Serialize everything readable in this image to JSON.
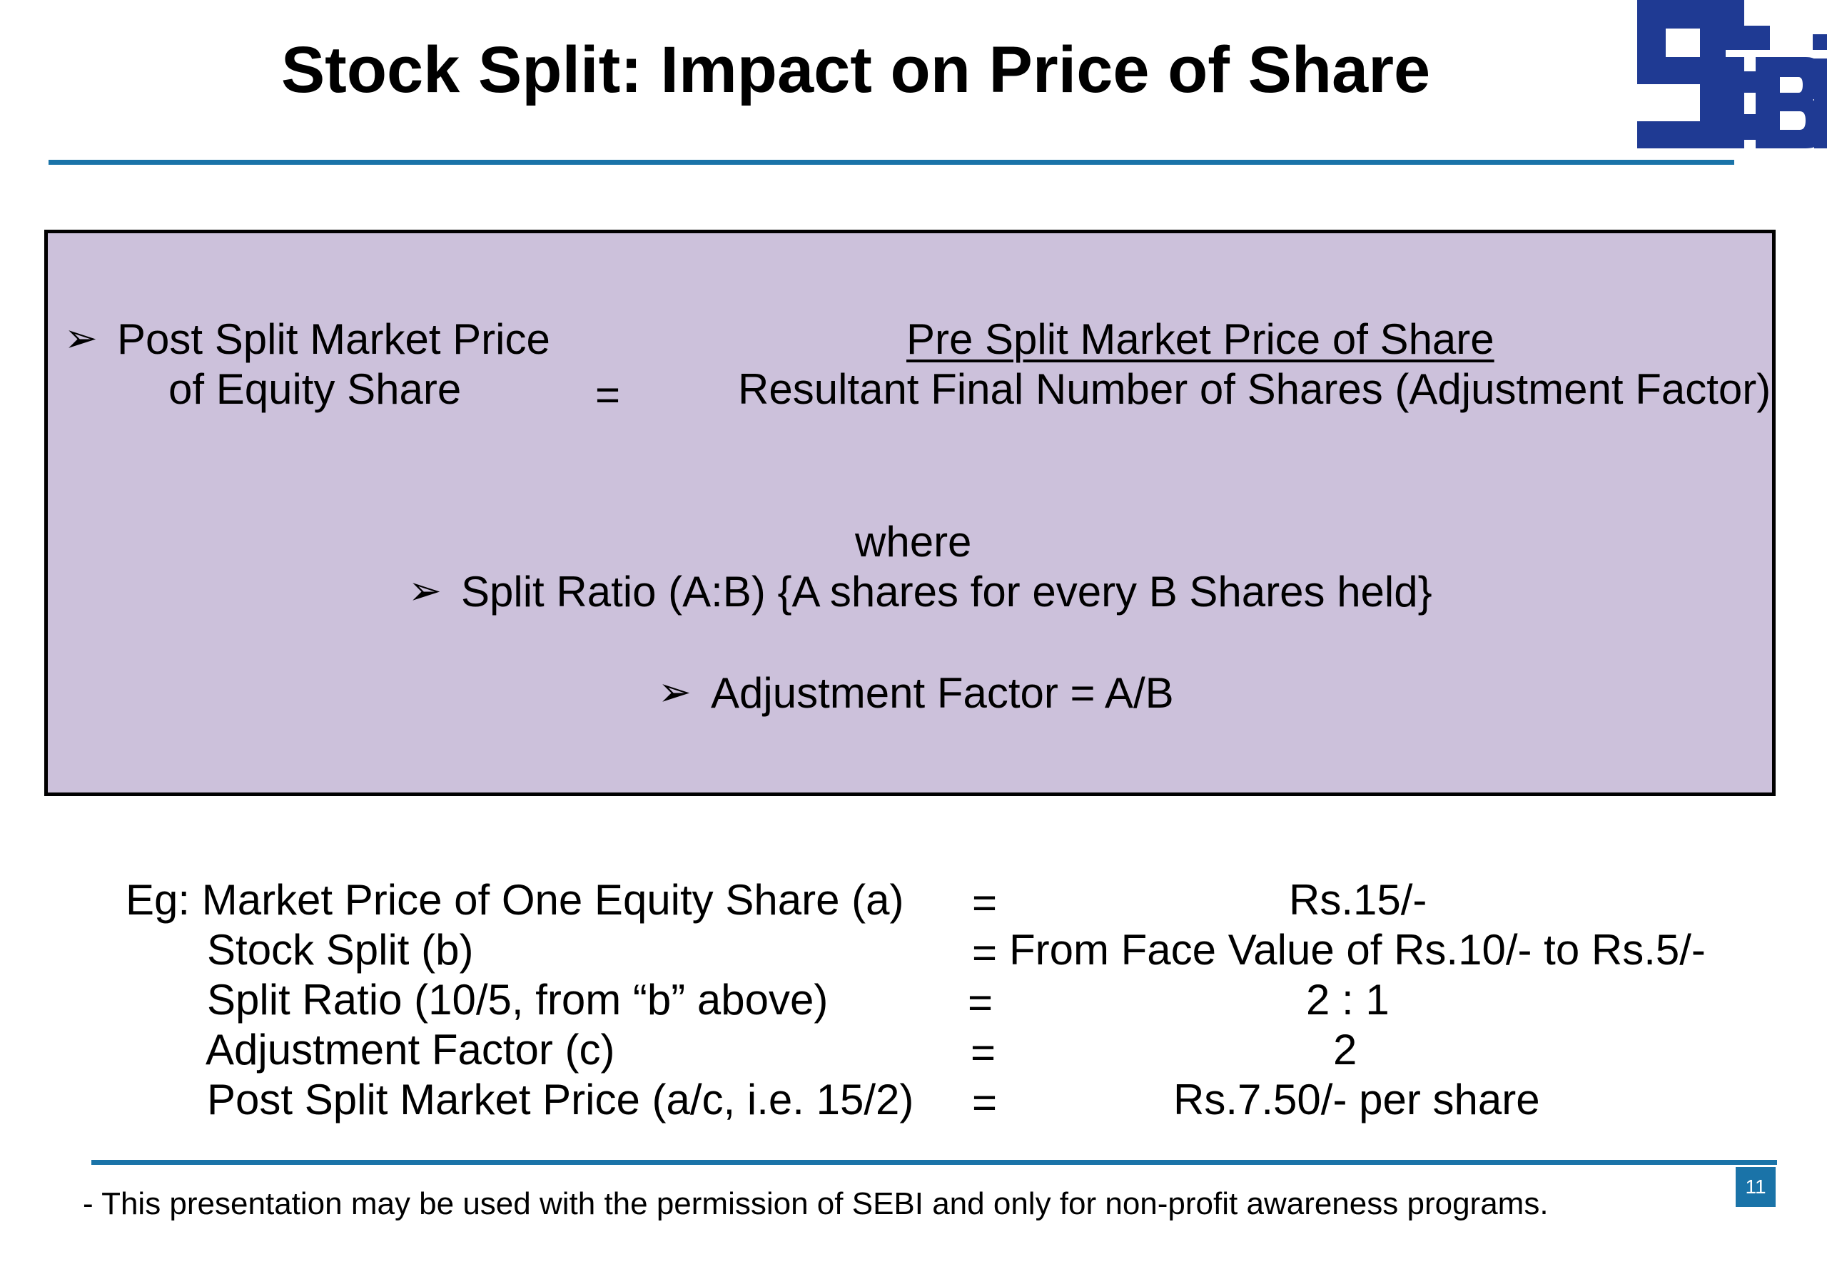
{
  "header": {
    "title": "Stock Split: Impact on Price of Share",
    "logo_text": "SEBI"
  },
  "formula": {
    "bullet_line1": "Post Split Market Price",
    "bullet_line2": "of Equity Share",
    "equals": "=",
    "numerator": "Pre Split Market Price of Share",
    "denominator": "Resultant Final Number of Shares (Adjustment Factor)",
    "where": "where",
    "split_ratio": "Split Ratio (A:B) {A shares for every B Shares held}",
    "adjustment_factor": "Adjustment Factor = A/B"
  },
  "example": {
    "rows": [
      {
        "label": "Eg: Market Price of One Equity Share (a)",
        "eq": "=",
        "value": "Rs.15/-"
      },
      {
        "label": "Stock Split (b)",
        "eq": "=",
        "value": "From Face Value of Rs.10/- to Rs.5/-"
      },
      {
        "label": "Split Ratio (10/5, from “b” above)",
        "eq": "=",
        "value": "2 : 1"
      },
      {
        "label": "Adjustment Factor (c)",
        "eq": "=",
        "value": "2"
      },
      {
        "label": "Post Split Market Price (a/c, i.e. 15/2)",
        "eq": "=",
        "value": "Rs.7.50/- per share"
      }
    ]
  },
  "footer": {
    "note": "- This presentation may be used with the permission of SEBI and only for non-profit awareness programs.",
    "page_number": "11"
  },
  "colors": {
    "accent": "#1a73a8",
    "box_fill": "#ccc1db",
    "logo_blue": "#1f3a93"
  },
  "icons": {
    "bullet": "arrowhead-bullet-icon"
  }
}
